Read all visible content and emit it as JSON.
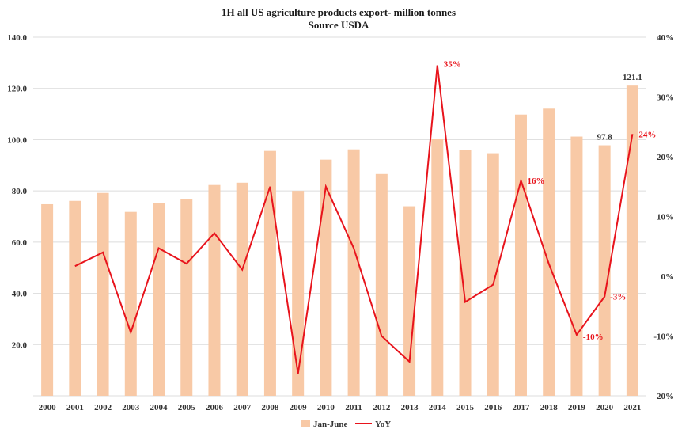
{
  "chart_data": {
    "type": "bar",
    "title": "1H all US agriculture products export- million tonnes",
    "subtitle": "Source USDA",
    "categories": [
      "2000",
      "2001",
      "2002",
      "2003",
      "2004",
      "2005",
      "2006",
      "2007",
      "2008",
      "2009",
      "2010",
      "2011",
      "2012",
      "2013",
      "2014",
      "2015",
      "2016",
      "2017",
      "2018",
      "2019",
      "2020",
      "2021"
    ],
    "series": [
      {
        "name": "Jan-June",
        "type": "bar",
        "axis": "left",
        "color": "#f8c9a6",
        "values": [
          74.8,
          76.1,
          79.2,
          71.8,
          75.2,
          76.8,
          82.3,
          83.2,
          95.6,
          80.0,
          92.2,
          96.2,
          86.6,
          74.0,
          100.3,
          96.0,
          94.7,
          109.8,
          112.1,
          101.2,
          97.8,
          121.1
        ]
      },
      {
        "name": "YoY",
        "type": "line",
        "axis": "right",
        "color": "#e8141c",
        "values": [
          null,
          1.7,
          4.0,
          -9.4,
          4.7,
          2.1,
          7.2,
          1.1,
          15.0,
          -16.3,
          15.0,
          4.7,
          -10.0,
          -14.3,
          35.3,
          -4.3,
          -1.4,
          16.0,
          2.1,
          -9.8,
          -3.4,
          23.8
        ]
      }
    ],
    "ylim": [
      0,
      140
    ],
    "yticks": [
      "-",
      "20.0",
      "40.0",
      "60.0",
      "80.0",
      "100.0",
      "120.0",
      "140.0"
    ],
    "y2lim": [
      -20,
      40
    ],
    "y2ticks": [
      "-20%",
      "-10%",
      "0%",
      "10%",
      "20%",
      "30%",
      "40%"
    ],
    "bar_labels": [
      {
        "index": 20,
        "text": "97.8"
      },
      {
        "index": 21,
        "text": "121.1"
      }
    ],
    "line_labels": [
      {
        "index": 14,
        "text": "35%"
      },
      {
        "index": 17,
        "text": "16%"
      },
      {
        "index": 19,
        "text": "-10%"
      },
      {
        "index": 20,
        "text": "-3%"
      },
      {
        "index": 21,
        "text": "24%"
      }
    ],
    "grid": true,
    "legend_position": "bottom",
    "xlabel": "",
    "ylabel": ""
  }
}
